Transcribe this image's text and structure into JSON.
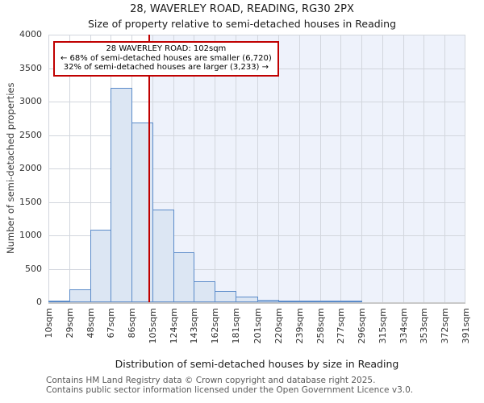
{
  "figure": {
    "title": "28, WAVERLEY ROAD, READING, RG30 2PX",
    "subtitle": "Size of property relative to semi-detached houses in Reading"
  },
  "annotation": {
    "line1": "28 WAVERLEY ROAD: 102sqm",
    "line2": "← 68% of semi-detached houses are smaller (6,720)",
    "line3": "32% of semi-detached houses are larger (3,233) →"
  },
  "footer": {
    "line1": "Contains HM Land Registry data © Crown copyright and database right 2025.",
    "line2": "Contains public sector information licensed under the Open Government Licence v3.0."
  },
  "chart_data": {
    "type": "bar",
    "title": "28, WAVERLEY ROAD, READING, RG30 2PX",
    "subtitle": "Size of property relative to semi-detached houses in Reading",
    "xlabel": "Distribution of semi-detached houses by size in Reading",
    "ylabel": "Number of semi-detached properties",
    "x_tick_labels": [
      "10sqm",
      "29sqm",
      "48sqm",
      "67sqm",
      "86sqm",
      "105sqm",
      "124sqm",
      "143sqm",
      "162sqm",
      "181sqm",
      "201sqm",
      "220sqm",
      "239sqm",
      "258sqm",
      "277sqm",
      "296sqm",
      "315sqm",
      "334sqm",
      "353sqm",
      "372sqm",
      "391sqm"
    ],
    "bin_edges_sqm": [
      10,
      29,
      48,
      67,
      86,
      105,
      124,
      143,
      162,
      181,
      201,
      220,
      239,
      258,
      277,
      296,
      315,
      334,
      353,
      372,
      391
    ],
    "counts": [
      15,
      190,
      1080,
      3200,
      2690,
      1380,
      750,
      310,
      165,
      80,
      40,
      25,
      20,
      10,
      10,
      0,
      0,
      0,
      0,
      0
    ],
    "y_ticks": [
      0,
      500,
      1000,
      1500,
      2000,
      2500,
      3000,
      3500,
      4000
    ],
    "ylim": [
      0,
      4000
    ],
    "grid": true,
    "legend": "none",
    "marker_sqm": 102,
    "smaller_pct": 68,
    "smaller_count": "6,720",
    "larger_pct": 32,
    "larger_count": "3,233",
    "colors": {
      "bar_fill": "#dce6f3",
      "bar_edge": "#5b8bc9",
      "marker_line": "#c00000",
      "annotation_border": "#c00000",
      "larger_region_shade": "#eef2fb",
      "grid_line": "#d2d6dd"
    }
  }
}
